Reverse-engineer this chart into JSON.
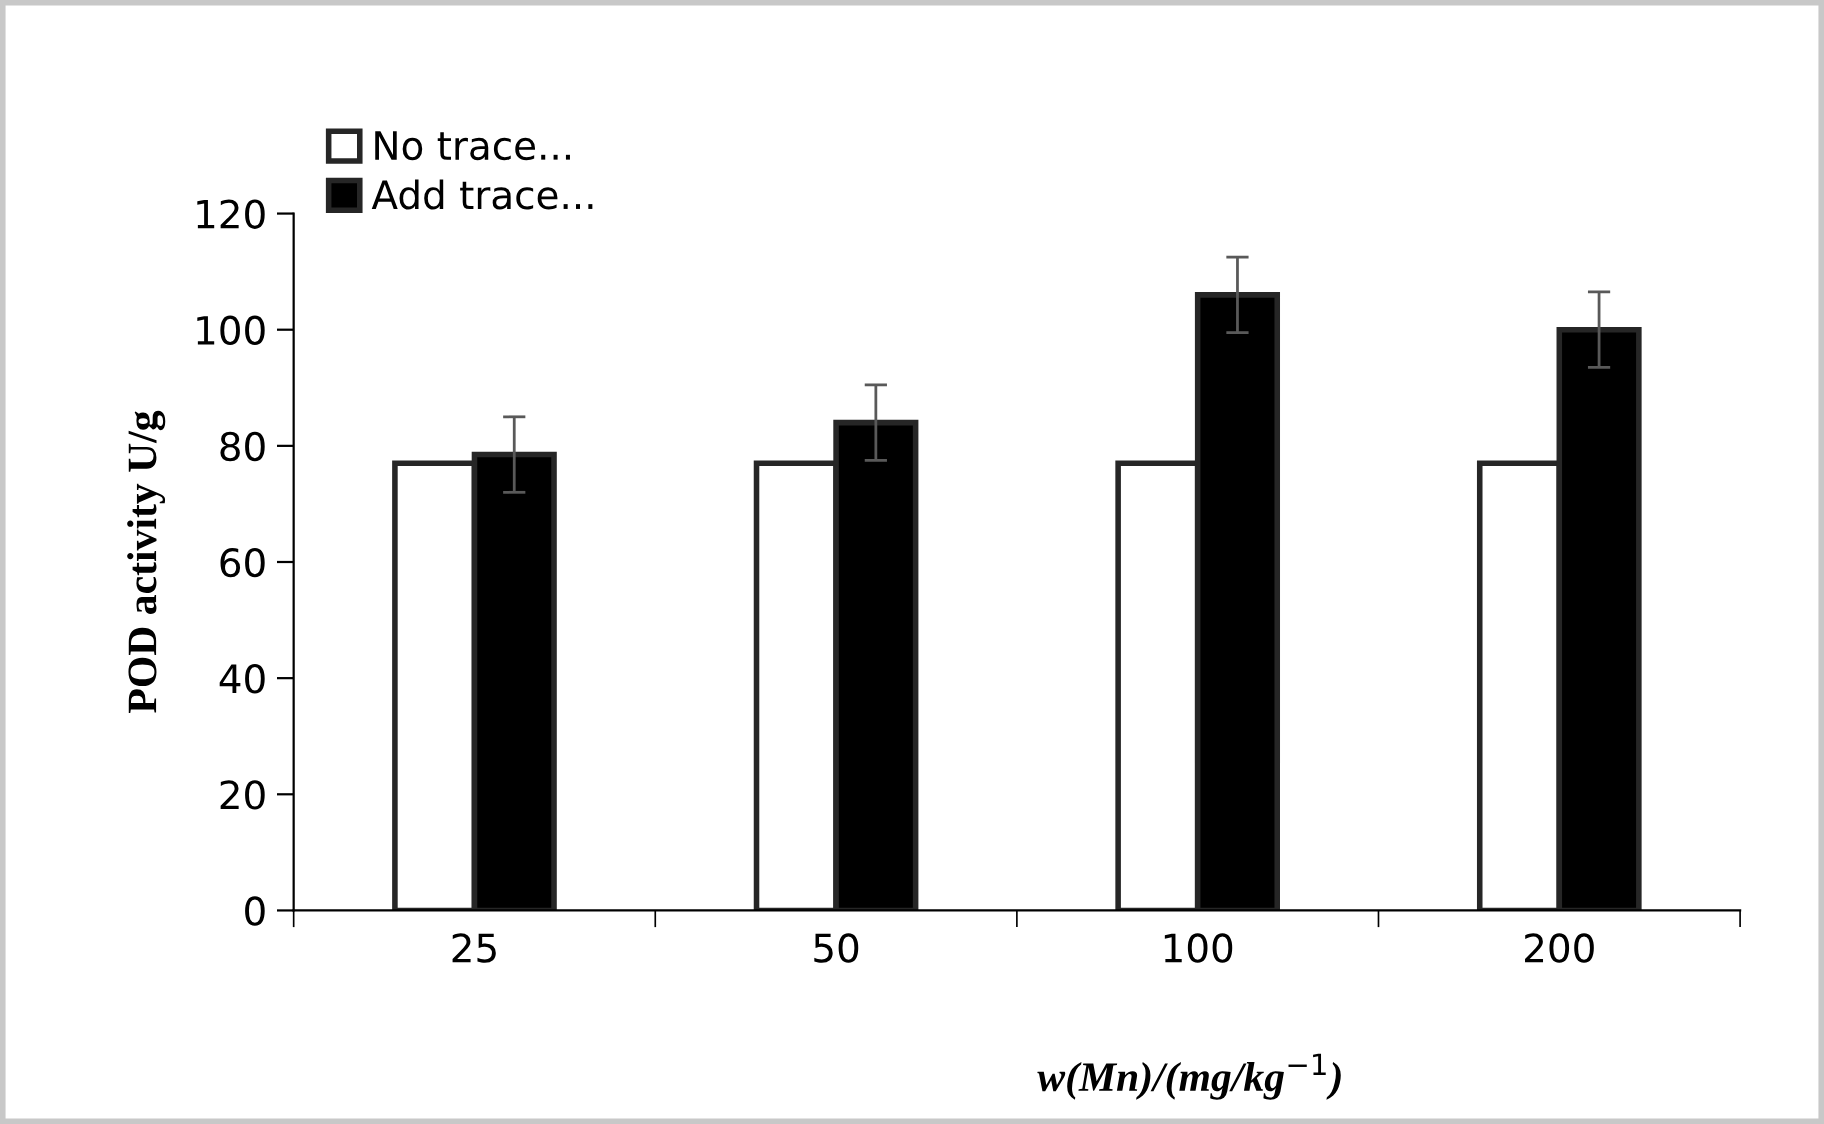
{
  "chart_data": {
    "type": "bar",
    "xlabel": "w(Mn)/(mg/kg$^{−1}$)",
    "ylabel": "POD activity U/g",
    "categories": [
      "25",
      "50",
      "100",
      "200"
    ],
    "series": [
      {
        "name": "No trace...",
        "color": "#ffffff",
        "values": [
          77,
          77,
          77,
          77
        ]
      },
      {
        "name": "Add trace...",
        "color": "#000000",
        "values": [
          78.5,
          84,
          106,
          100
        ],
        "errors": [
          6.5,
          6.5,
          6.5,
          6.5
        ]
      }
    ],
    "ylim": [
      0,
      120
    ],
    "yticks": [
      0,
      20,
      40,
      60,
      80,
      100,
      120
    ],
    "grid": false,
    "legend": "top left"
  }
}
